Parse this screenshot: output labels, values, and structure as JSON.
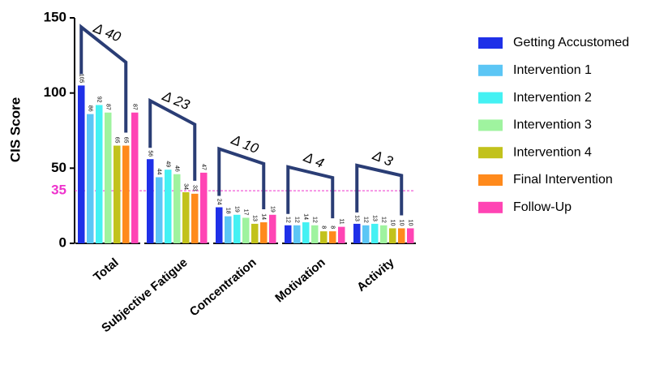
{
  "chart_data": {
    "type": "bar",
    "ylabel": "CIS Score",
    "categories": [
      "Total",
      "Subjective Fatigue",
      "Concentration",
      "Motivation",
      "Activity"
    ],
    "series": [
      {
        "name": "Getting Accustomed",
        "color": "#1f30e8",
        "values": [
          105,
          56,
          24,
          12,
          13
        ]
      },
      {
        "name": "Intervention 1",
        "color": "#5cc6f5",
        "values": [
          86,
          44,
          18,
          12,
          12
        ]
      },
      {
        "name": "Intervention 2",
        "color": "#44f1f3",
        "values": [
          92,
          49,
          19,
          14,
          13
        ]
      },
      {
        "name": "Intervention 3",
        "color": "#9ff39f",
        "values": [
          87,
          46,
          17,
          12,
          12
        ]
      },
      {
        "name": "Intervention 4",
        "color": "#c2c21c",
        "values": [
          65,
          34,
          13,
          8,
          10
        ]
      },
      {
        "name": "Final Intervention",
        "color": "#ff8a1c",
        "values": [
          65,
          33,
          14,
          8,
          10
        ]
      },
      {
        "name": "Follow-Up",
        "color": "#ff44b4",
        "values": [
          87,
          47,
          19,
          11,
          10
        ]
      }
    ],
    "ylim": [
      0,
      150
    ],
    "yticks": [
      0,
      50,
      100,
      150
    ],
    "reference_line": {
      "value": 35,
      "label": "35",
      "color": "#ee33cc"
    },
    "annotations": [
      "Δ 40",
      "Δ 23",
      "Δ 10",
      "Δ 4",
      "Δ 3"
    ],
    "bracket_color": "#2a3d75"
  }
}
